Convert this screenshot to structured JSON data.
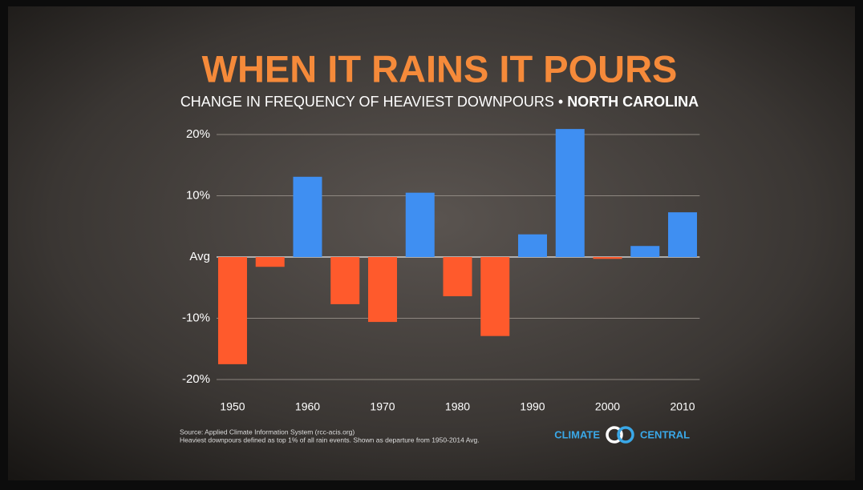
{
  "chart_data": {
    "type": "bar",
    "title": "WHEN IT RAINS IT POURS",
    "subtitle": "CHANGE IN FREQUENCY OF HEAVIEST DOWNPOURS • ",
    "region": "NORTH CAROLINA",
    "categories": [
      "1950",
      null,
      "1960",
      null,
      "1970",
      null,
      "1980",
      null,
      "1990",
      null,
      "2000",
      null,
      "2010"
    ],
    "values": [
      -17.5,
      -1.6,
      13.1,
      -7.7,
      -10.6,
      10.5,
      -6.4,
      -12.9,
      3.7,
      20.9,
      -0.3,
      1.8,
      7.3
    ],
    "positive_color": "#3f8ff2",
    "negative_color": "#ff5a2c",
    "ylim": [
      -22,
      22
    ],
    "yticks": [
      {
        "value": -20,
        "label": "-20%"
      },
      {
        "value": -10,
        "label": "-10%"
      },
      {
        "value": 0,
        "label": "Avg"
      },
      {
        "value": 10,
        "label": "10%"
      },
      {
        "value": 20,
        "label": "20%"
      }
    ],
    "grid": true,
    "source": "Source: Applied Climate Information System (rcc-acis.org)",
    "note": "Heaviest downpours defined as top 1% of all rain events. Shown as departure from 1950-2014 Avg.",
    "logo_left": "CLIMATE",
    "logo_right": "CENTRAL"
  }
}
